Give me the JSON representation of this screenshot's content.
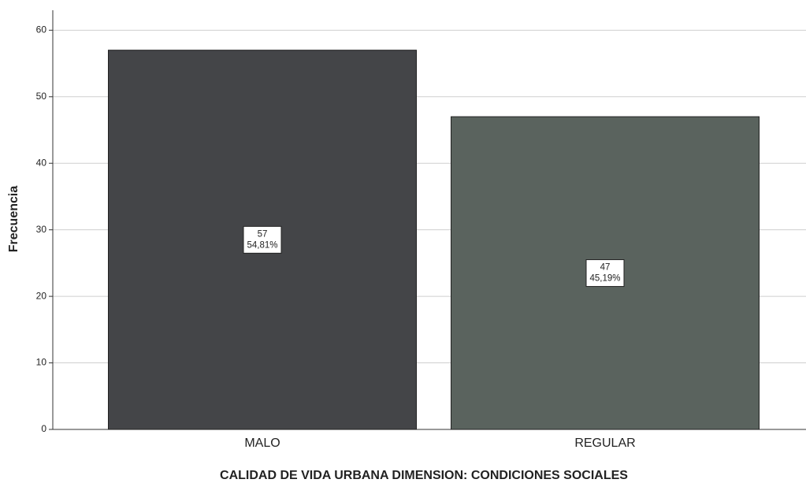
{
  "chart_data": {
    "type": "bar",
    "x_label": "CALIDAD DE VIDA URBANA DIMENSION: CONDICIONES SOCIALES",
    "y_label": "Frecuencia",
    "categories": [
      "MALO",
      "REGULAR"
    ],
    "values": [
      57,
      47
    ],
    "percentages": [
      54.81,
      45.19
    ],
    "percentage_labels": [
      "54,81%",
      "45,19%"
    ],
    "colors": [
      "#444548",
      "#5a635e"
    ],
    "ylim": [
      0,
      63
    ],
    "yticks": [
      0,
      10,
      20,
      30,
      40,
      50,
      60
    ],
    "grid": true
  }
}
